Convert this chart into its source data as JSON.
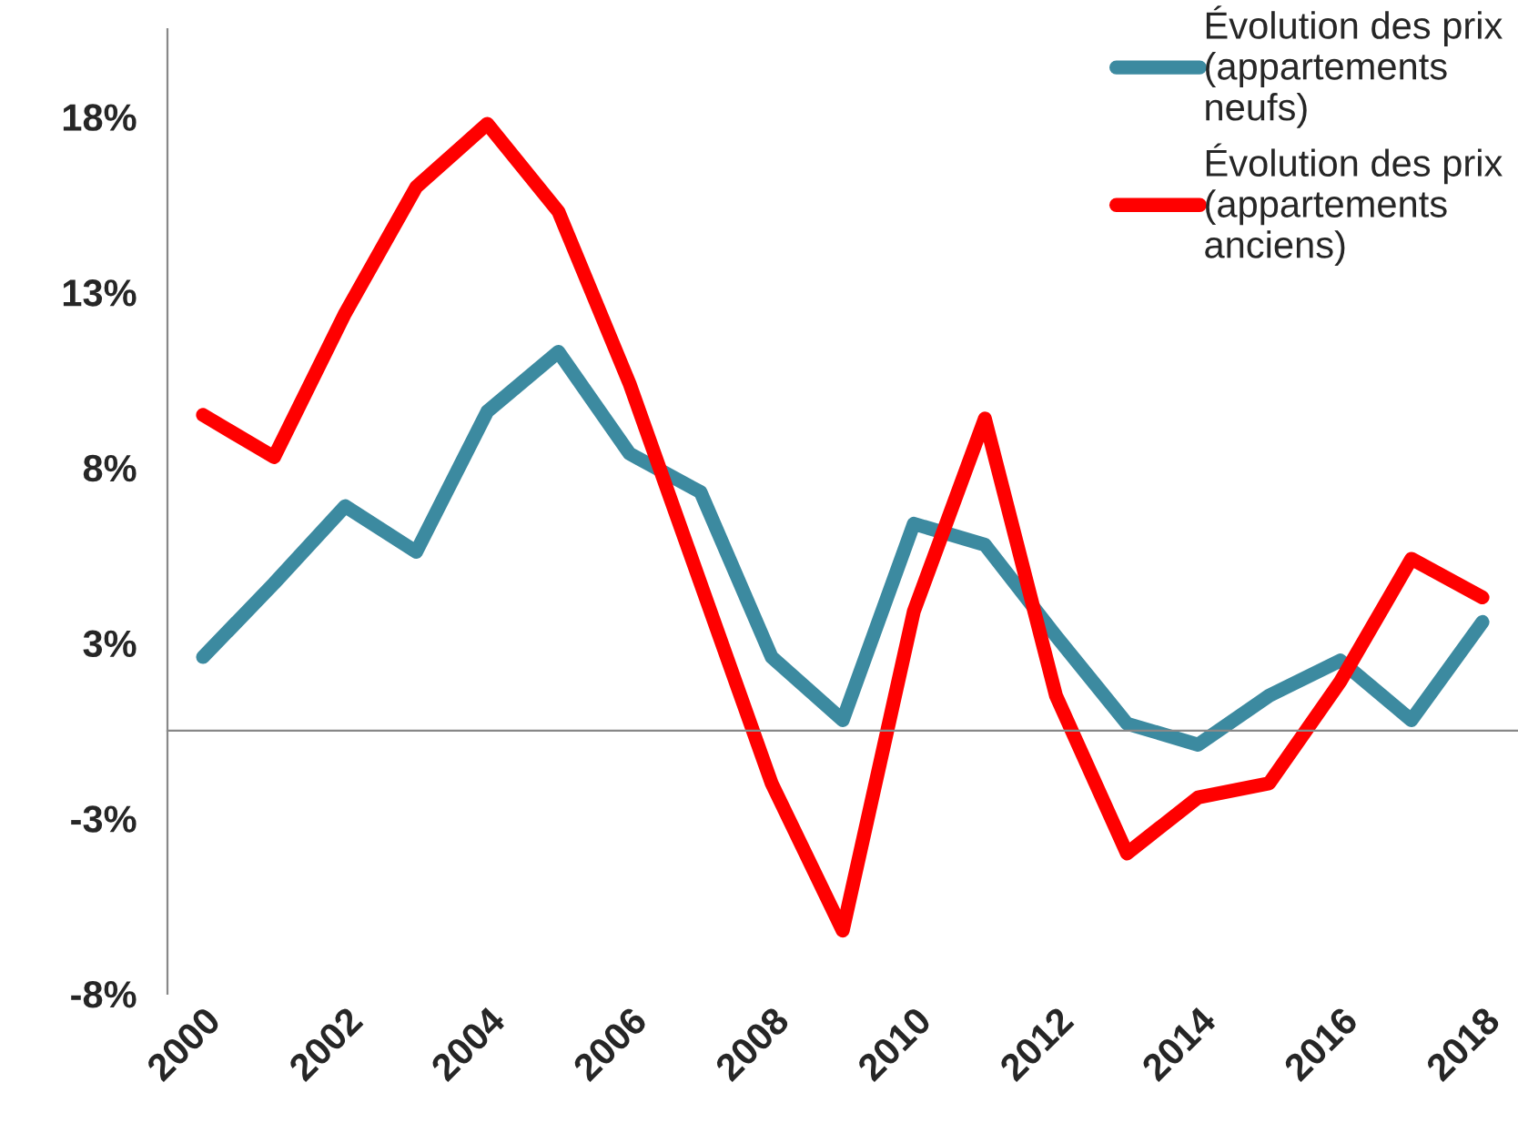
{
  "chart_data": {
    "type": "line",
    "categories": [
      "2000",
      null,
      "2002",
      null,
      "2004",
      null,
      "2006",
      null,
      "2008",
      null,
      "2010",
      null,
      "2012",
      null,
      "2014",
      null,
      "2016",
      null,
      "2018"
    ],
    "series": [
      {
        "name": "Évolution des prix\n(appartements\nneufs)",
        "color": "#3c8aa0",
        "values": [
          2.1,
          4.2,
          6.4,
          5.1,
          9.1,
          10.8,
          7.9,
          6.8,
          2.1,
          0.3,
          5.9,
          5.3,
          2.7,
          0.2,
          -0.4,
          1.0,
          2.0,
          0.3,
          3.1
        ]
      },
      {
        "name": "Évolution des prix\n(appartements\nanciens)",
        "color": "#ff0000",
        "values": [
          9.0,
          7.8,
          11.9,
          15.5,
          17.3,
          14.8,
          9.9,
          4.2,
          -1.5,
          -5.7,
          3.4,
          8.9,
          1.0,
          -3.5,
          -1.9,
          -1.5,
          1.4,
          4.9,
          3.8
        ]
      }
    ],
    "ylim": [
      -7.5,
      20
    ],
    "yticks": [
      {
        "value": 17.5,
        "label": "18%"
      },
      {
        "value": 12.5,
        "label": "13%"
      },
      {
        "value": 7.5,
        "label": "8%"
      },
      {
        "value": 2.5,
        "label": "3%"
      },
      {
        "value": -2.5,
        "label": "-3%"
      },
      {
        "value": -7.5,
        "label": "-8%"
      }
    ],
    "grid": false,
    "legend": "top right",
    "marker": "none",
    "line_style": "solid"
  }
}
